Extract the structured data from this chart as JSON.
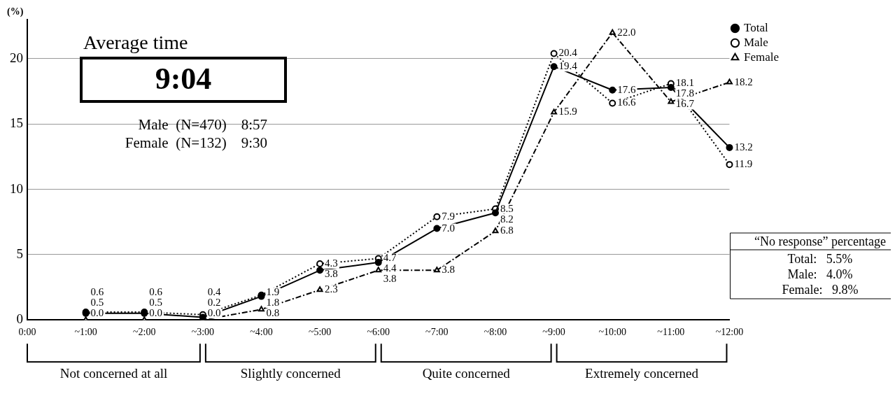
{
  "chart_data": {
    "type": "line",
    "ylabel": "(%)",
    "categories": [
      "0:00",
      "~1:00",
      "~2:00",
      "~3:00",
      "~4:00",
      "~5:00",
      "~6:00",
      "~7:00",
      "~8:00",
      "~9:00",
      "~10:00",
      "~11:00",
      "~12:00"
    ],
    "series": [
      {
        "name": "Total",
        "color": "#000000",
        "marker": "circle",
        "line_style": "solid",
        "values": [
          null,
          0.5,
          0.5,
          0.2,
          1.8,
          3.8,
          4.4,
          7.0,
          8.2,
          19.4,
          17.6,
          17.8,
          13.2
        ],
        "value_labels": [
          null,
          "0.5",
          "0.5",
          "0.2",
          "1.8",
          "3.8",
          "4.4",
          "7.0",
          "8.2",
          "19.4",
          "17.6",
          "17.8",
          "13.2"
        ]
      },
      {
        "name": "Male",
        "color": "#000000",
        "marker": "circle",
        "line_style": "dotted",
        "values": [
          null,
          0.6,
          0.6,
          0.4,
          1.9,
          4.3,
          4.7,
          7.9,
          8.5,
          20.4,
          16.6,
          18.1,
          11.9
        ],
        "value_labels": [
          null,
          "0.6",
          "0.6",
          "0.4",
          "1.9",
          "4.3",
          "4.7",
          "7.9",
          "8.5",
          "20.4",
          "16.6",
          "18.1",
          "11.9"
        ]
      },
      {
        "name": "Female",
        "color": "#000000",
        "marker": "triangle",
        "line_style": "dashed",
        "values": [
          null,
          0.0,
          0.0,
          0.0,
          0.8,
          2.3,
          3.8,
          3.8,
          6.8,
          15.9,
          22.0,
          16.7,
          18.2
        ],
        "value_labels": [
          null,
          "0.0",
          "0.0",
          "0.0",
          "0.8",
          "2.3",
          "3.8",
          "3.8",
          "6.8",
          "15.9",
          "22.0",
          "16.7",
          "18.2"
        ]
      }
    ],
    "ylim": [
      0,
      23
    ],
    "yticks": [
      0,
      5,
      10,
      15,
      20
    ],
    "grid": "y",
    "legend": "top right",
    "annotations": [
      "Average time",
      "9:04",
      "Male  (N=470)    8:57",
      "Female  (N=132)    9:30",
      "“No response” percentage",
      "Total:   5.5%",
      "Male:   4.0%",
      "Female:   9.8%",
      "Not concerned at all",
      "Slightly concerned",
      "Quite concerned",
      "Extremely concerned"
    ]
  }
}
